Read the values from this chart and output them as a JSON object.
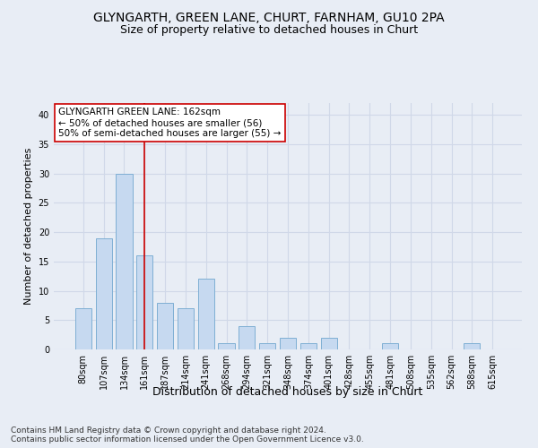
{
  "title": "GLYNGARTH, GREEN LANE, CHURT, FARNHAM, GU10 2PA",
  "subtitle": "Size of property relative to detached houses in Churt",
  "xlabel": "Distribution of detached houses by size in Churt",
  "ylabel": "Number of detached properties",
  "categories": [
    "80sqm",
    "107sqm",
    "134sqm",
    "161sqm",
    "187sqm",
    "214sqm",
    "241sqm",
    "268sqm",
    "294sqm",
    "321sqm",
    "348sqm",
    "374sqm",
    "401sqm",
    "428sqm",
    "455sqm",
    "481sqm",
    "508sqm",
    "535sqm",
    "562sqm",
    "588sqm",
    "615sqm"
  ],
  "values": [
    7,
    19,
    30,
    16,
    8,
    7,
    12,
    1,
    4,
    1,
    2,
    1,
    2,
    0,
    0,
    1,
    0,
    0,
    0,
    1,
    0
  ],
  "bar_color": "#c6d9f0",
  "bar_edge_color": "#7fafd4",
  "vline_x_index": 3,
  "vline_color": "#cc0000",
  "annotation_text": "GLYNGARTH GREEN LANE: 162sqm\n← 50% of detached houses are smaller (56)\n50% of semi-detached houses are larger (55) →",
  "annotation_box_color": "white",
  "annotation_box_edge_color": "#cc0000",
  "ylim": [
    0,
    42
  ],
  "yticks": [
    0,
    5,
    10,
    15,
    20,
    25,
    30,
    35,
    40
  ],
  "grid_color": "#d0d8e8",
  "background_color": "#e8edf5",
  "footnote": "Contains HM Land Registry data © Crown copyright and database right 2024.\nContains public sector information licensed under the Open Government Licence v3.0.",
  "title_fontsize": 10,
  "subtitle_fontsize": 9,
  "xlabel_fontsize": 9,
  "ylabel_fontsize": 8,
  "annotation_fontsize": 7.5,
  "tick_fontsize": 7,
  "footnote_fontsize": 6.5
}
